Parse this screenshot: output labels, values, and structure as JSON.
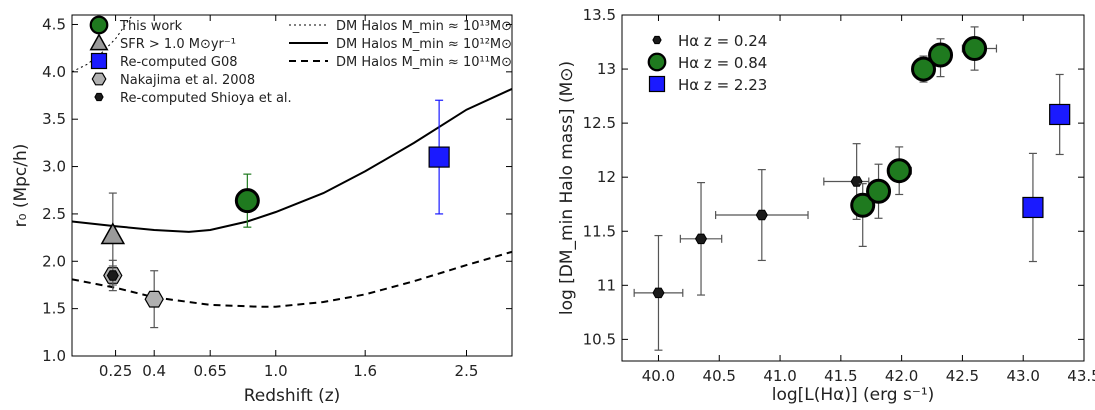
{
  "chart_data": [
    {
      "type": "scatter",
      "panel": "left",
      "xlabel": "Redshift (z)",
      "ylabel": "r₀ (Mpc/h)",
      "x_scale": "log(1+z)",
      "xlim": [
        0.1,
        3.0
      ],
      "ylim": [
        1.0,
        4.6
      ],
      "x_ticks": [
        0.25,
        0.4,
        0.65,
        1.0,
        1.6,
        2.5
      ],
      "x_tick_labels": [
        "0.25",
        "0.4",
        "0.65",
        "1.0",
        "1.6",
        "2.5"
      ],
      "y_ticks": [
        1.0,
        1.5,
        2.0,
        2.5,
        3.0,
        3.5,
        4.0,
        4.5
      ],
      "y_tick_labels": [
        "1.0",
        "1.5",
        "2.0",
        "2.5",
        "3.0",
        "3.5",
        "4.0",
        "4.5"
      ],
      "legend_position": "top-left",
      "series": [
        {
          "name": "This work",
          "marker": "circle",
          "color": "#1f7a1f",
          "err_color": "#1f7a1f",
          "points": [
            {
              "x": 0.84,
              "y": 2.64,
              "yerr": [
                0.28,
                0.28
              ]
            }
          ]
        },
        {
          "name": "SFR > 1.0 M⊙yr⁻¹",
          "marker": "triangle",
          "color": "#9a9a9a",
          "err_color": "#555555",
          "points": [
            {
              "x": 0.24,
              "y": 2.28,
              "yerr": [
                0.44,
                0.44
              ]
            }
          ]
        },
        {
          "name": "Re-computed G08",
          "marker": "square",
          "color": "#1a1aff",
          "err_color": "#1a1aff",
          "points": [
            {
              "x": 2.23,
              "y": 3.1,
              "yerr": [
                0.6,
                0.6
              ]
            }
          ]
        },
        {
          "name": "Nakajima et al. 2008",
          "marker": "hexagon",
          "color": "#b0b0b0",
          "err_color": "#555555",
          "points": [
            {
              "x": 0.24,
              "y": 1.85,
              "yerr": [
                0.16,
                0.16
              ]
            },
            {
              "x": 0.4,
              "y": 1.6,
              "yerr": [
                0.3,
                0.3
              ]
            }
          ]
        },
        {
          "name": "Re-computed Shioya et al.",
          "marker": "hexagon_small",
          "color": "#1a1a1a",
          "err_color": "#555555",
          "points": [
            {
              "x": 0.24,
              "y": 1.85,
              "yerr": [
                0.1,
                0.1
              ]
            }
          ]
        }
      ],
      "curves": [
        {
          "name": "DM Halos M_min ≈ 10¹³M⊙",
          "style": "dotted",
          "points": [
            [
              0.1,
              4.0
            ],
            [
              0.15,
              4.08
            ],
            [
              0.2,
              4.2
            ],
            [
              0.25,
              4.35
            ],
            [
              0.3,
              4.55
            ],
            [
              0.33,
              4.65
            ]
          ]
        },
        {
          "name": "DM Halos M_min ≈ 10¹²M⊙",
          "style": "solid",
          "points": [
            [
              0.1,
              2.42
            ],
            [
              0.25,
              2.37
            ],
            [
              0.4,
              2.33
            ],
            [
              0.55,
              2.31
            ],
            [
              0.65,
              2.33
            ],
            [
              0.84,
              2.42
            ],
            [
              1.0,
              2.52
            ],
            [
              1.3,
              2.72
            ],
            [
              1.6,
              2.95
            ],
            [
              2.0,
              3.25
            ],
            [
              2.5,
              3.6
            ],
            [
              3.0,
              3.82
            ]
          ]
        },
        {
          "name": "DM Halos M_min ≈ 10¹¹M⊙",
          "style": "dashed",
          "points": [
            [
              0.1,
              1.81
            ],
            [
              0.25,
              1.72
            ],
            [
              0.4,
              1.62
            ],
            [
              0.65,
              1.54
            ],
            [
              0.9,
              1.52
            ],
            [
              1.0,
              1.52
            ],
            [
              1.3,
              1.57
            ],
            [
              1.6,
              1.65
            ],
            [
              2.0,
              1.79
            ],
            [
              2.5,
              1.96
            ],
            [
              3.0,
              2.1
            ]
          ]
        }
      ],
      "legend_columns": [
        [
          "This work",
          "SFR > 1.0 M⊙yr⁻¹",
          "Re-computed G08",
          "Nakajima et al. 2008",
          "Re-computed Shioya et al."
        ],
        [
          "DM Halos M_min ≈ 10¹³M⊙",
          "DM Halos M_min ≈ 10¹²M⊙",
          "DM Halos M_min ≈ 10¹¹M⊙"
        ]
      ]
    },
    {
      "type": "scatter",
      "panel": "right",
      "xlabel": "log[L(Hα)] (erg s⁻¹)",
      "ylabel": "log [DM_min Halo mass] (M⊙)",
      "xlim": [
        39.7,
        43.5
      ],
      "ylim": [
        10.3,
        13.5
      ],
      "x_ticks": [
        40.0,
        40.5,
        41.0,
        41.5,
        42.0,
        42.5,
        43.0,
        43.5
      ],
      "x_tick_labels": [
        "40.0",
        "40.5",
        "41.0",
        "41.5",
        "42.0",
        "42.5",
        "43.0",
        "43.5"
      ],
      "y_ticks": [
        10.5,
        11.0,
        11.5,
        12.0,
        12.5,
        13.0,
        13.5
      ],
      "y_tick_labels": [
        "10.5",
        "11",
        "11.5",
        "12",
        "12.5",
        "13",
        "13.5"
      ],
      "legend_position": "top-left",
      "series": [
        {
          "name": "Hα z = 0.24",
          "marker": "hexagon_small",
          "color": "#1a1a1a",
          "points": [
            {
              "x": 40.0,
              "y": 10.93,
              "xerr": [
                0.2,
                0.2
              ],
              "yerr": [
                0.53,
                0.53
              ]
            },
            {
              "x": 40.35,
              "y": 11.43,
              "xerr": [
                0.17,
                0.17
              ],
              "yerr": [
                0.52,
                0.52
              ]
            },
            {
              "x": 40.85,
              "y": 11.65,
              "xerr": [
                0.38,
                0.38
              ],
              "yerr": [
                0.42,
                0.42
              ]
            },
            {
              "x": 41.63,
              "y": 11.96,
              "xerr": [
                0.27,
                0.1
              ],
              "yerr": [
                0.35,
                0.35
              ]
            }
          ]
        },
        {
          "name": "Hα z = 0.84",
          "marker": "circle",
          "color": "#1f7a1f",
          "points": [
            {
              "x": 41.68,
              "y": 11.74,
              "xerr": [
                0.05,
                0.05
              ],
              "yerr": [
                0.38,
                0.2
              ]
            },
            {
              "x": 41.81,
              "y": 11.87,
              "xerr": [
                0.05,
                0.05
              ],
              "yerr": [
                0.25,
                0.25
              ]
            },
            {
              "x": 41.98,
              "y": 12.06,
              "xerr": [
                0.06,
                0.1
              ],
              "yerr": [
                0.22,
                0.22
              ]
            },
            {
              "x": 42.18,
              "y": 13.0,
              "xerr": [
                0.05,
                0.05
              ],
              "yerr": [
                0.12,
                0.12
              ]
            },
            {
              "x": 42.32,
              "y": 13.13,
              "xerr": [
                0.05,
                0.05
              ],
              "yerr": [
                0.2,
                0.15
              ]
            },
            {
              "x": 42.6,
              "y": 13.19,
              "xerr": [
                0.1,
                0.18
              ],
              "yerr": [
                0.2,
                0.2
              ]
            }
          ]
        },
        {
          "name": "Hα z = 2.23",
          "marker": "square",
          "color": "#1a1aff",
          "points": [
            {
              "x": 43.08,
              "y": 11.72,
              "xerr": [
                0.05,
                0.05
              ],
              "yerr": [
                0.5,
                0.5
              ]
            },
            {
              "x": 43.3,
              "y": 12.58,
              "xerr": [
                0.05,
                0.05
              ],
              "yerr": [
                0.37,
                0.37
              ]
            }
          ]
        }
      ],
      "legend": [
        "Hα z = 0.24",
        "Hα z = 0.84",
        "Hα z = 2.23"
      ]
    }
  ]
}
